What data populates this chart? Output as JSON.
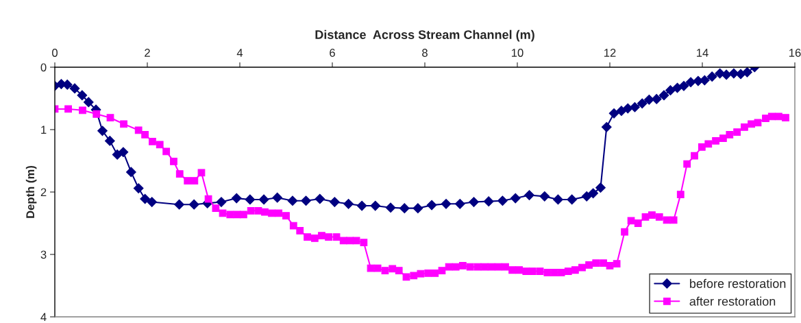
{
  "chart_data": {
    "type": "line",
    "xlabel": "Distance  Across Stream Channel (m)",
    "ylabel": "Depth (m)",
    "xlim": [
      0,
      16
    ],
    "xticks": [
      0,
      2,
      4,
      6,
      8,
      10,
      12,
      14,
      16
    ],
    "ylim": [
      4,
      0
    ],
    "yticks": [
      0,
      1,
      2,
      3,
      4
    ],
    "grid": false,
    "legend": "bottom right",
    "line_style": "solid",
    "series": [
      {
        "name": "before restoration",
        "color": "#000080",
        "marker": "diamond",
        "x": [
          0,
          0.14,
          0.27,
          0.43,
          0.59,
          0.73,
          0.89,
          1.03,
          1.19,
          1.35,
          1.48,
          1.65,
          1.81,
          1.95,
          2.1,
          2.69,
          3.01,
          3.3,
          3.6,
          3.93,
          4.22,
          4.52,
          4.81,
          5.14,
          5.43,
          5.73,
          6.05,
          6.35,
          6.64,
          6.93,
          7.26,
          7.56,
          7.85,
          8.15,
          8.46,
          8.76,
          9.06,
          9.38,
          9.68,
          9.96,
          10.26,
          10.59,
          10.88,
          11.18,
          11.5,
          11.64,
          11.8,
          11.93,
          12.09,
          12.25,
          12.39,
          12.54,
          12.7,
          12.85,
          13.01,
          13.17,
          13.31,
          13.46,
          13.6,
          13.75,
          13.91,
          14.05,
          14.21,
          14.38,
          14.52,
          14.68,
          14.83,
          14.97,
          15.13
        ],
        "values": [
          0.3,
          0.27,
          0.28,
          0.34,
          0.45,
          0.56,
          0.68,
          1.02,
          1.18,
          1.4,
          1.36,
          1.68,
          1.94,
          2.11,
          2.16,
          2.2,
          2.2,
          2.18,
          2.16,
          2.1,
          2.12,
          2.12,
          2.09,
          2.14,
          2.14,
          2.11,
          2.16,
          2.19,
          2.22,
          2.22,
          2.25,
          2.26,
          2.26,
          2.21,
          2.19,
          2.19,
          2.16,
          2.15,
          2.14,
          2.1,
          2.05,
          2.07,
          2.12,
          2.12,
          2.07,
          2.02,
          1.93,
          0.96,
          0.74,
          0.7,
          0.66,
          0.64,
          0.58,
          0.52,
          0.51,
          0.45,
          0.37,
          0.33,
          0.3,
          0.24,
          0.22,
          0.21,
          0.15,
          0.1,
          0.12,
          0.1,
          0.11,
          0.08,
          0.0
        ]
      },
      {
        "name": "after restoration",
        "color": "#ff00ff",
        "marker": "square",
        "x": [
          0,
          0.29,
          0.6,
          0.9,
          1.2,
          1.49,
          1.81,
          1.95,
          2.11,
          2.27,
          2.41,
          2.57,
          2.7,
          2.87,
          3.02,
          3.17,
          3.32,
          3.48,
          3.63,
          3.79,
          3.94,
          4.08,
          4.24,
          4.4,
          4.54,
          4.69,
          4.84,
          5.0,
          5.16,
          5.3,
          5.46,
          5.62,
          5.77,
          5.92,
          6.09,
          6.24,
          6.38,
          6.52,
          6.68,
          6.83,
          6.98,
          7.14,
          7.3,
          7.44,
          7.6,
          7.76,
          7.91,
          8.07,
          8.22,
          8.37,
          8.52,
          8.67,
          8.82,
          8.98,
          9.14,
          9.29,
          9.44,
          9.59,
          9.74,
          9.89,
          10.04,
          10.19,
          10.33,
          10.49,
          10.65,
          10.8,
          10.95,
          11.1,
          11.25,
          11.4,
          11.55,
          11.7,
          11.86,
          12.0,
          12.15,
          12.32,
          12.46,
          12.61,
          12.77,
          12.91,
          13.07,
          13.23,
          13.38,
          13.53,
          13.67,
          13.83,
          13.99,
          14.13,
          14.29,
          14.45,
          14.59,
          14.75,
          14.91,
          15.06,
          15.2,
          15.37,
          15.5,
          15.65,
          15.8
        ],
        "values": [
          0.67,
          0.67,
          0.69,
          0.75,
          0.81,
          0.91,
          1.01,
          1.08,
          1.19,
          1.24,
          1.35,
          1.51,
          1.71,
          1.82,
          1.82,
          1.69,
          2.11,
          2.26,
          2.34,
          2.36,
          2.36,
          2.36,
          2.3,
          2.3,
          2.32,
          2.34,
          2.34,
          2.38,
          2.54,
          2.62,
          2.72,
          2.74,
          2.7,
          2.72,
          2.72,
          2.78,
          2.78,
          2.78,
          2.81,
          3.22,
          3.22,
          3.26,
          3.23,
          3.26,
          3.36,
          3.34,
          3.31,
          3.3,
          3.3,
          3.26,
          3.2,
          3.2,
          3.18,
          3.2,
          3.2,
          3.2,
          3.2,
          3.2,
          3.2,
          3.25,
          3.25,
          3.27,
          3.27,
          3.27,
          3.29,
          3.29,
          3.29,
          3.27,
          3.25,
          3.21,
          3.17,
          3.14,
          3.14,
          3.18,
          3.15,
          2.64,
          2.46,
          2.5,
          2.4,
          2.37,
          2.4,
          2.45,
          2.45,
          2.04,
          1.55,
          1.42,
          1.28,
          1.23,
          1.18,
          1.14,
          1.08,
          1.04,
          0.96,
          0.91,
          0.89,
          0.82,
          0.79,
          0.79,
          0.81
        ]
      }
    ]
  }
}
